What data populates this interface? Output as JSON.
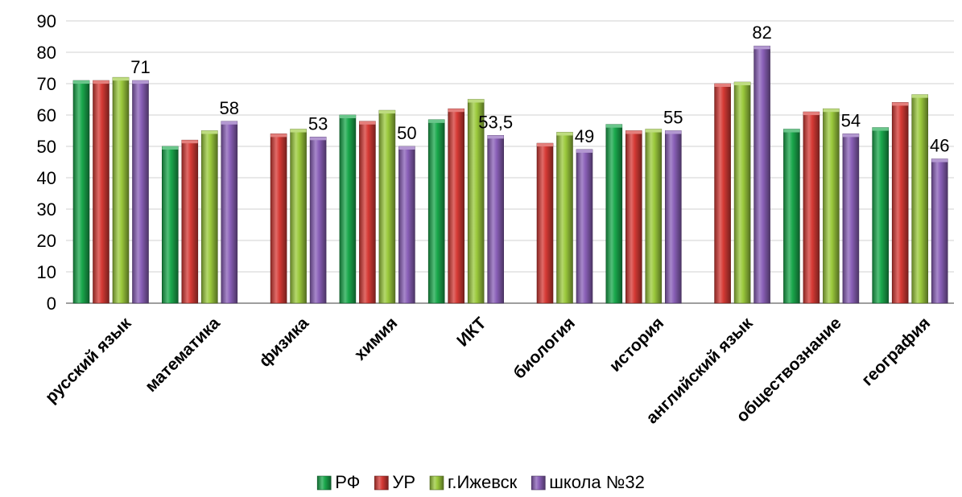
{
  "chart_data": {
    "type": "bar",
    "title": "",
    "xlabel": "",
    "ylabel": "",
    "ylim": [
      0,
      90
    ],
    "yticks": [
      0,
      10,
      20,
      30,
      40,
      50,
      60,
      70,
      80,
      90
    ],
    "grid": true,
    "legend_position": "bottom",
    "categories": [
      "русский язык",
      "математика",
      "физика",
      "химия",
      "ИКТ",
      "биология",
      "история",
      "английский язык",
      "обществознание",
      "география"
    ],
    "series": [
      {
        "name": "РФ",
        "color": "#1aa84c",
        "values": [
          71,
          50,
          null,
          60,
          58.5,
          null,
          57,
          null,
          55.5,
          56
        ]
      },
      {
        "name": "УР",
        "color": "#d63a35",
        "values": [
          71,
          52,
          54,
          58,
          62,
          51,
          55,
          70,
          61,
          64
        ]
      },
      {
        "name": "г.Ижевск",
        "color": "#9bc93c",
        "values": [
          72,
          55,
          55.5,
          61.5,
          65,
          54.5,
          55.5,
          70.5,
          62,
          66.5
        ]
      },
      {
        "name": "школа №32",
        "color": "#8a60b8",
        "values": [
          71,
          58,
          53,
          50,
          53.5,
          49,
          55,
          82,
          54,
          46
        ]
      }
    ],
    "data_labels": {
      "series": "школа №32",
      "labels": [
        "71",
        "58",
        "53",
        "50",
        "53,5",
        "49",
        "55",
        "82",
        "54",
        "46"
      ]
    }
  }
}
